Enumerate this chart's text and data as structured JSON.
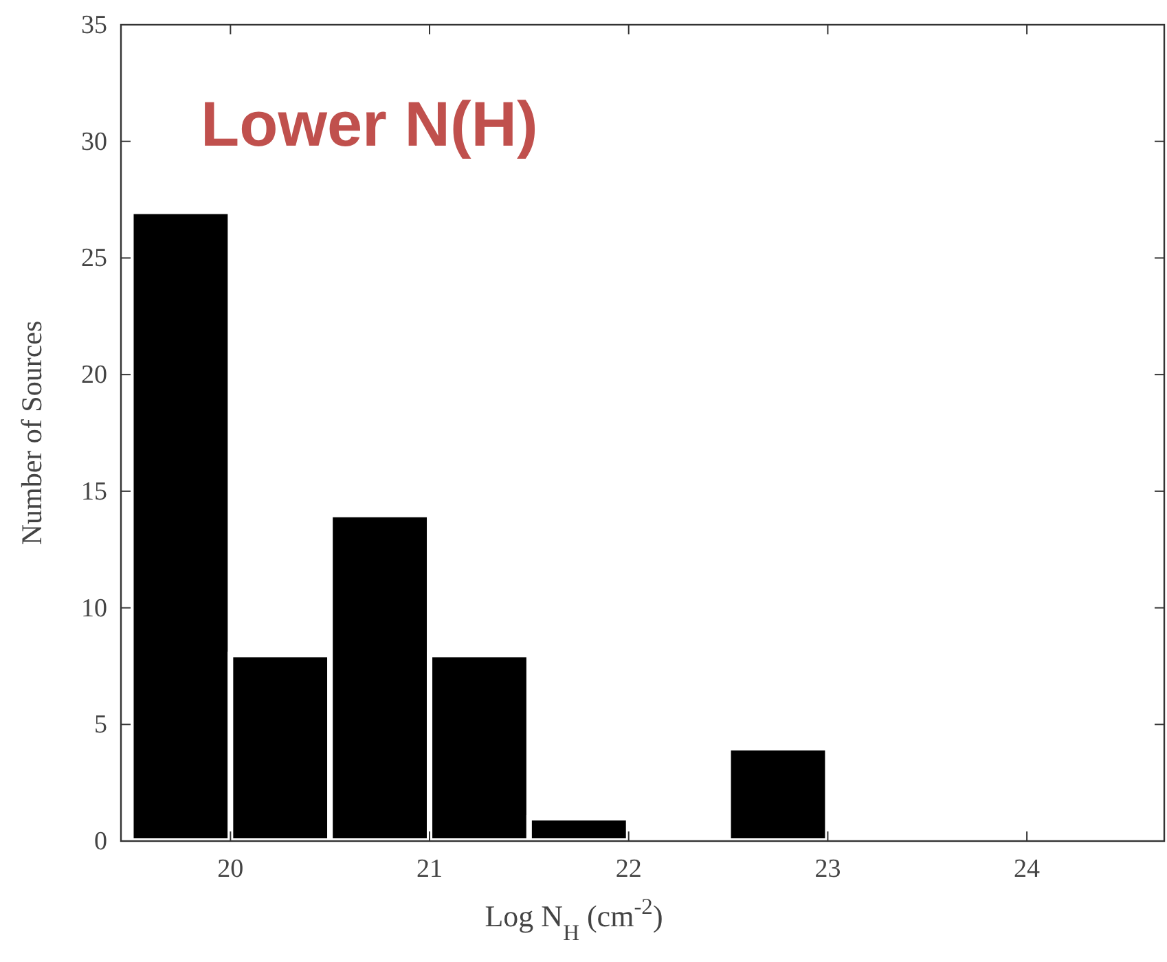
{
  "chart_data": {
    "type": "histogram",
    "xlabel": "Log N$_{H}$ (cm$^{-2}$)",
    "ylabel": "Number of Sources",
    "annotations": [
      "Lower N(H)"
    ],
    "bins": [
      19.5,
      20,
      20.5,
      21,
      21.5,
      22,
      22.5,
      23
    ],
    "values": [
      27,
      8,
      14,
      8,
      1,
      0,
      4
    ],
    "color": "#000000",
    "xlim": [
      19.45,
      24.69
    ],
    "xticks": [
      20,
      21,
      22,
      23,
      24
    ],
    "ylim": [
      0,
      35
    ],
    "yticks": [
      0,
      5,
      10,
      15,
      20,
      25,
      30,
      35
    ],
    "grid": false
  }
}
